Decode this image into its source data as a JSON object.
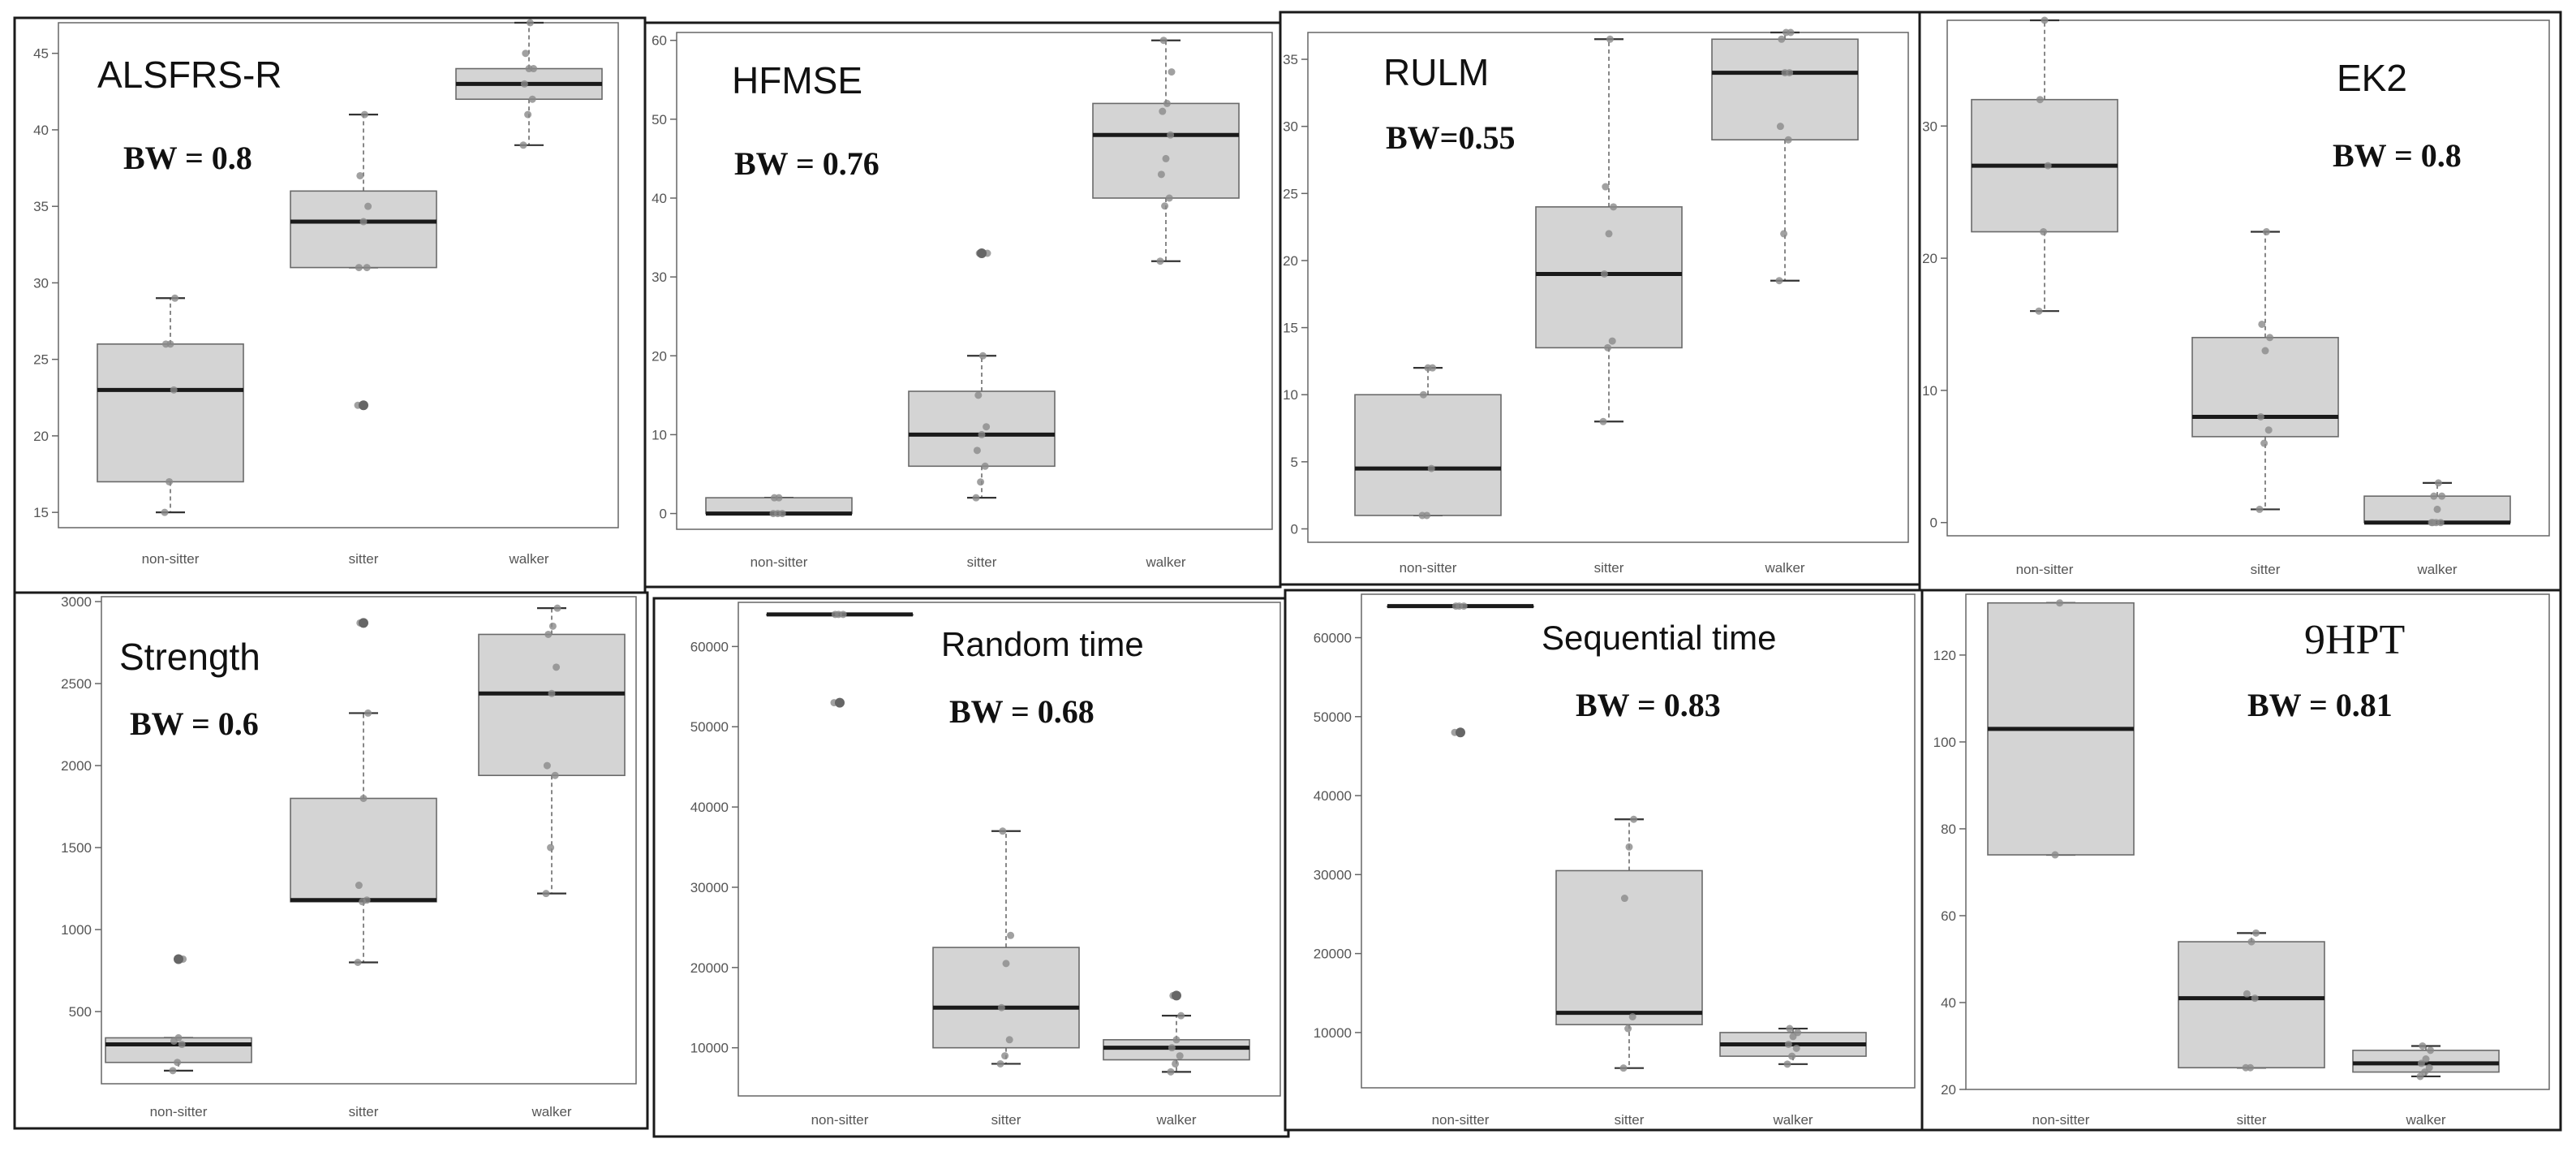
{
  "chart_data": [
    {
      "type": "box",
      "title": "ALSFRS-R",
      "bw_label": "BW = 0.8",
      "categories": [
        "non-sitter",
        "sitter",
        "walker"
      ],
      "ylim": [
        14,
        47
      ],
      "yticks": [
        15,
        20,
        25,
        30,
        35,
        40,
        45
      ],
      "boxes": [
        {
          "min": 15,
          "q1": 17,
          "median": 23,
          "q3": 26,
          "max": 29,
          "outliers": [],
          "points": [
            15,
            17,
            23,
            26,
            26,
            29
          ]
        },
        {
          "min": 31,
          "q1": 31,
          "median": 34,
          "q3": 36,
          "max": 41,
          "outliers": [
            22
          ],
          "points": [
            22,
            22,
            31,
            31,
            34,
            35,
            37,
            41
          ]
        },
        {
          "min": 39,
          "q1": 42,
          "median": 43,
          "q3": 44,
          "max": 47,
          "outliers": [],
          "points": [
            39,
            41,
            42,
            43,
            44,
            44,
            45,
            47
          ]
        }
      ]
    },
    {
      "type": "box",
      "title": "HFMSE",
      "bw_label": "BW = 0.76",
      "categories": [
        "non-sitter",
        "sitter",
        "walker"
      ],
      "ylim": [
        -2,
        61
      ],
      "yticks": [
        0,
        10,
        20,
        30,
        40,
        50,
        60
      ],
      "boxes": [
        {
          "min": 0,
          "q1": 0,
          "median": 0,
          "q3": 2,
          "max": 2,
          "outliers": [],
          "points": [
            0,
            0,
            0,
            2,
            2
          ]
        },
        {
          "min": 2,
          "q1": 6,
          "median": 10,
          "q3": 15.5,
          "max": 20,
          "outliers": [
            33
          ],
          "points": [
            2,
            4,
            6,
            8,
            10,
            11,
            15,
            20,
            33,
            33
          ]
        },
        {
          "min": 32,
          "q1": 40,
          "median": 48,
          "q3": 52,
          "max": 60,
          "outliers": [],
          "points": [
            32,
            39,
            40,
            43,
            45,
            48,
            51,
            52,
            56,
            60
          ]
        }
      ]
    },
    {
      "type": "box",
      "title": "RULM",
      "bw_label": "BW=0.55",
      "categories": [
        "non-sitter",
        "sitter",
        "walker"
      ],
      "ylim": [
        -1,
        37
      ],
      "yticks": [
        0,
        5,
        10,
        15,
        20,
        25,
        30,
        35
      ],
      "boxes": [
        {
          "min": 1,
          "q1": 1,
          "median": 4.5,
          "q3": 10,
          "max": 12,
          "outliers": [],
          "points": [
            1,
            1,
            4.5,
            10,
            12,
            12
          ]
        },
        {
          "min": 8,
          "q1": 13.5,
          "median": 19,
          "q3": 24,
          "max": 36.5,
          "outliers": [],
          "points": [
            8,
            13.5,
            14,
            19,
            22,
            24,
            25.5,
            36.5
          ]
        },
        {
          "min": 18.5,
          "q1": 29,
          "median": 34,
          "q3": 36.5,
          "max": 37,
          "outliers": [],
          "points": [
            18.5,
            22,
            29,
            30,
            34,
            34,
            36.5,
            37,
            37
          ]
        }
      ]
    },
    {
      "type": "box",
      "title": "EK2",
      "bw_label": "BW = 0.8",
      "categories": [
        "non-sitter",
        "sitter",
        "walker"
      ],
      "ylim": [
        -1,
        38
      ],
      "yticks": [
        0,
        10,
        20,
        30
      ],
      "boxes": [
        {
          "min": 16,
          "q1": 22,
          "median": 27,
          "q3": 32,
          "max": 38,
          "outliers": [],
          "points": [
            16,
            22,
            27,
            32,
            38
          ]
        },
        {
          "min": 1,
          "q1": 6.5,
          "median": 8,
          "q3": 14,
          "max": 22,
          "outliers": [],
          "points": [
            1,
            6,
            7,
            8,
            13,
            14,
            15,
            22
          ]
        },
        {
          "min": 0,
          "q1": 0,
          "median": 0,
          "q3": 2,
          "max": 3,
          "outliers": [],
          "points": [
            0,
            0,
            0,
            0,
            1,
            2,
            2,
            3
          ]
        }
      ]
    },
    {
      "type": "box",
      "title": "Strength",
      "bw_label": "BW = 0.6",
      "categories": [
        "non-sitter",
        "sitter",
        "walker"
      ],
      "ylim": [
        60,
        3030
      ],
      "yticks": [
        500,
        1000,
        1500,
        2000,
        2500,
        3000
      ],
      "boxes": [
        {
          "min": 140,
          "q1": 190,
          "median": 300,
          "q3": 340,
          "max": 340,
          "outliers": [
            820
          ],
          "points": [
            140,
            190,
            300,
            320,
            340,
            820
          ]
        },
        {
          "min": 800,
          "q1": 1170,
          "median": 1180,
          "q3": 1800,
          "max": 2320,
          "outliers": [
            2870
          ],
          "points": [
            800,
            1170,
            1180,
            1270,
            1800,
            2320,
            2870
          ]
        },
        {
          "min": 1220,
          "q1": 1940,
          "median": 2440,
          "q3": 2800,
          "max": 2960,
          "outliers": [],
          "points": [
            1220,
            1500,
            1940,
            2000,
            2440,
            2600,
            2800,
            2850,
            2960
          ]
        }
      ]
    },
    {
      "type": "box",
      "title": "Random time",
      "bw_label": "BW = 0.68",
      "categories": [
        "non-sitter",
        "sitter",
        "walker"
      ],
      "ylim": [
        4000,
        65500
      ],
      "yticks": [
        10000,
        20000,
        30000,
        40000,
        50000,
        60000
      ],
      "boxes": [
        {
          "min": 64000,
          "q1": 64000,
          "median": 64000,
          "q3": 64000,
          "max": 64000,
          "outliers": [
            53000
          ],
          "points": [
            53000,
            64000,
            64000,
            64000
          ]
        },
        {
          "min": 8000,
          "q1": 10000,
          "median": 15000,
          "q3": 22500,
          "max": 37000,
          "outliers": [],
          "points": [
            8000,
            9000,
            11000,
            15000,
            20500,
            24000,
            37000
          ]
        },
        {
          "min": 7000,
          "q1": 8500,
          "median": 10000,
          "q3": 11000,
          "max": 14000,
          "outliers": [
            16500
          ],
          "points": [
            7000,
            8000,
            9000,
            10000,
            11000,
            14000,
            16500
          ]
        }
      ]
    },
    {
      "type": "box",
      "title": "Sequential time",
      "bw_label": "BW = 0.83",
      "categories": [
        "non-sitter",
        "sitter",
        "walker"
      ],
      "ylim": [
        3000,
        65500
      ],
      "yticks": [
        10000,
        20000,
        30000,
        40000,
        50000,
        60000
      ],
      "boxes": [
        {
          "min": 64000,
          "q1": 64000,
          "median": 64000,
          "q3": 64000,
          "max": 64000,
          "outliers": [
            48000
          ],
          "points": [
            48000,
            64000,
            64000,
            64000
          ]
        },
        {
          "min": 5500,
          "q1": 11000,
          "median": 12500,
          "q3": 30500,
          "max": 37000,
          "outliers": [],
          "points": [
            5500,
            10500,
            12000,
            27000,
            33500,
            37000
          ]
        },
        {
          "min": 6000,
          "q1": 7000,
          "median": 8500,
          "q3": 10000,
          "max": 10500,
          "outliers": [],
          "points": [
            6000,
            7000,
            8000,
            8500,
            9500,
            10000,
            10500
          ]
        }
      ]
    },
    {
      "type": "box",
      "title": "9HPT",
      "bw_label": "BW = 0.81",
      "categories": [
        "non-sitter",
        "sitter",
        "walker"
      ],
      "ylim": [
        20,
        134
      ],
      "yticks": [
        20,
        40,
        60,
        80,
        100,
        120
      ],
      "boxes": [
        {
          "min": 74,
          "q1": 74,
          "median": 103,
          "q3": 132,
          "max": 132,
          "outliers": [],
          "points": [
            74,
            132
          ]
        },
        {
          "min": 25,
          "q1": 25,
          "median": 41,
          "q3": 54,
          "max": 56,
          "outliers": [],
          "points": [
            25,
            25,
            41,
            42,
            54,
            56
          ]
        },
        {
          "min": 23,
          "q1": 24,
          "median": 26,
          "q3": 29,
          "max": 30,
          "outliers": [],
          "points": [
            23,
            24,
            25,
            26,
            27,
            29,
            30
          ]
        }
      ]
    }
  ]
}
